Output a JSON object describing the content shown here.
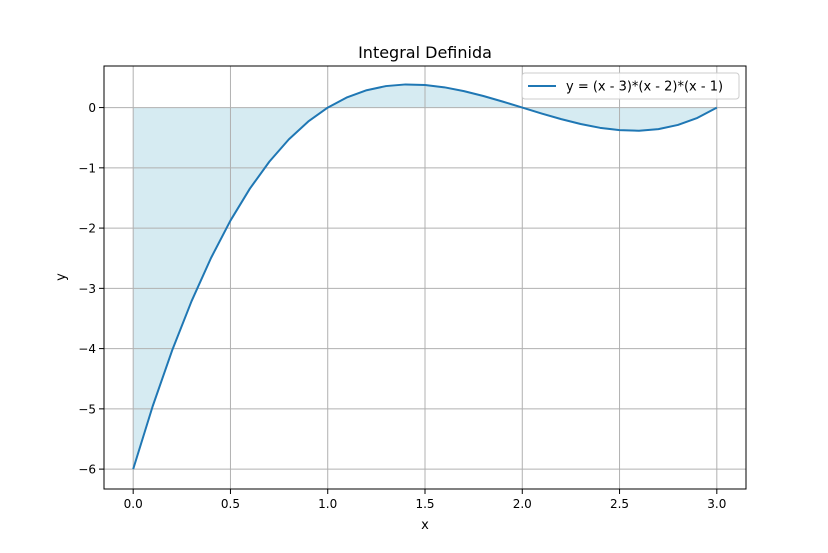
{
  "chart_data": {
    "type": "line",
    "title": "Integral Definida",
    "xlabel": "x",
    "ylabel": "y",
    "xlim": [
      -0.15,
      3.15
    ],
    "ylim": [
      -6.33,
      0.69
    ],
    "xticks": [
      0.0,
      0.5,
      1.0,
      1.5,
      2.0,
      2.5,
      3.0
    ],
    "xtick_labels": [
      "0.0",
      "0.5",
      "1.0",
      "1.5",
      "2.0",
      "2.5",
      "3.0"
    ],
    "yticks": [
      0,
      -1,
      -2,
      -3,
      -4,
      -5,
      -6
    ],
    "ytick_labels": [
      "0",
      "−1",
      "−2",
      "−3",
      "−4",
      "−5",
      "−6"
    ],
    "grid": true,
    "legend_position": "top-right",
    "fill_between": {
      "from_x": 0,
      "to_x": 3,
      "baseline": 0,
      "color": "#add8e6"
    },
    "series": [
      {
        "name": "y = (x - 3)*(x - 2)*(x - 1)",
        "color": "#1f77b4",
        "x": [
          0.0,
          0.1,
          0.2,
          0.3,
          0.4,
          0.5,
          0.6,
          0.7,
          0.8,
          0.9,
          1.0,
          1.1,
          1.2,
          1.3,
          1.4,
          1.5,
          1.6,
          1.7,
          1.8,
          1.9,
          2.0,
          2.1,
          2.2,
          2.3,
          2.4,
          2.5,
          2.6,
          2.7,
          2.8,
          2.9,
          3.0
        ],
        "y": [
          -6.0,
          -4.959,
          -4.032,
          -3.213,
          -2.496,
          -1.875,
          -1.344,
          -0.897,
          -0.528,
          -0.231,
          0.0,
          0.171,
          0.288,
          0.357,
          0.384,
          0.375,
          0.336,
          0.273,
          0.192,
          0.099,
          0.0,
          -0.099,
          -0.192,
          -0.273,
          -0.336,
          -0.375,
          -0.384,
          -0.357,
          -0.288,
          -0.171,
          0.0
        ]
      }
    ]
  }
}
